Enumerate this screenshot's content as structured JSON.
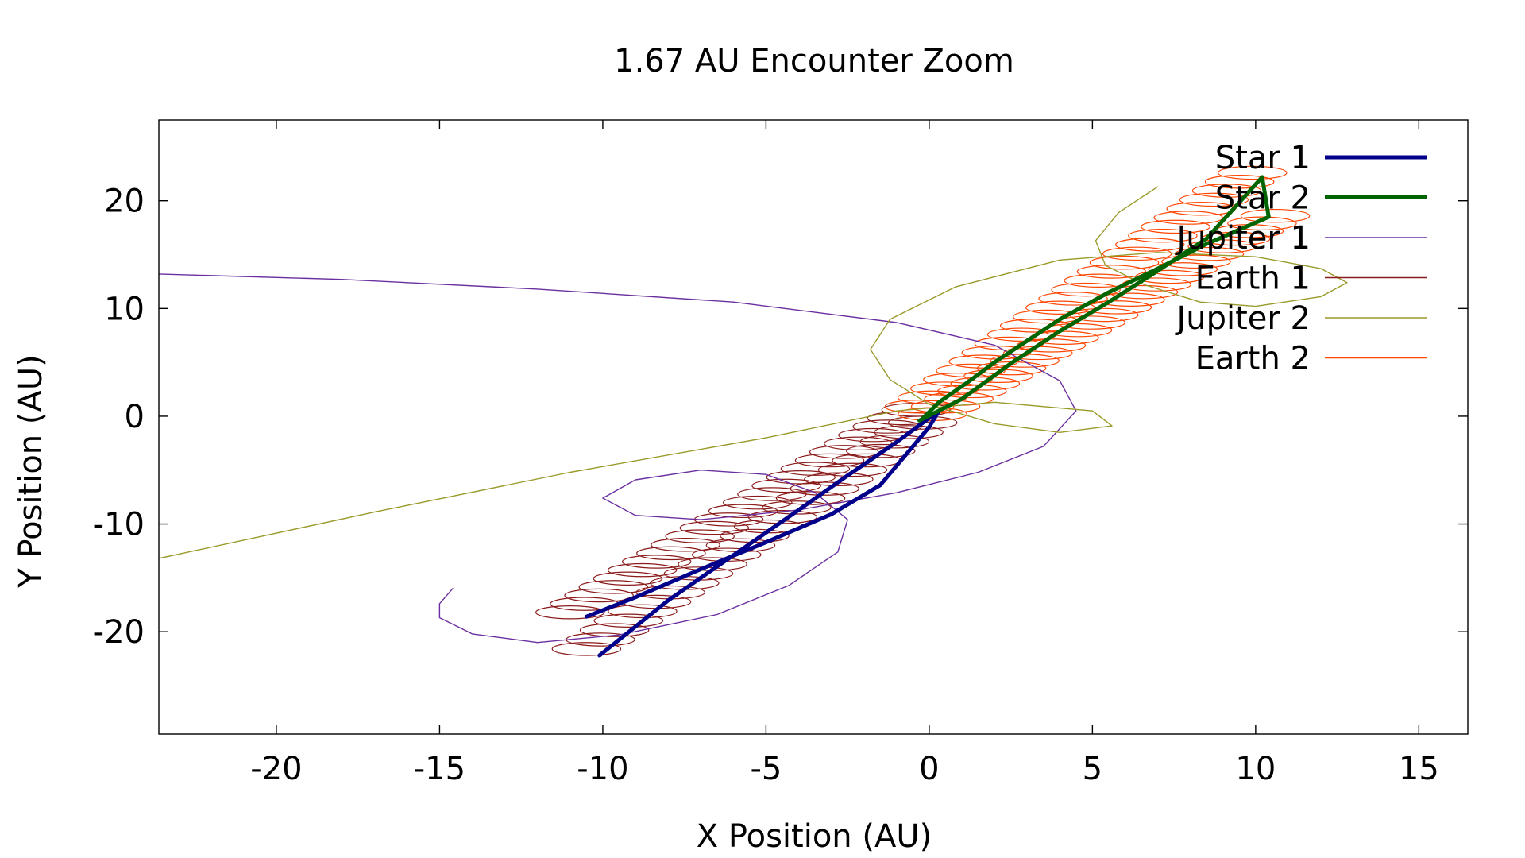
{
  "chart_data": {
    "type": "line",
    "title": "1.67 AU Encounter Zoom",
    "xlabel": "X Position (AU)",
    "ylabel": "Y Position (AU)",
    "xlim": [
      -23.6,
      16.5
    ],
    "ylim": [
      -29.5,
      27.5
    ],
    "xticks": [
      -20,
      -15,
      -10,
      -5,
      0,
      5,
      10,
      15
    ],
    "yticks": [
      -20,
      -10,
      0,
      10,
      20
    ],
    "grid": false,
    "legend_position": "top-right",
    "series": [
      {
        "name": "Star 1",
        "color": "#00008b",
        "width": 5,
        "points": [
          [
            -10.5,
            -18.6
          ],
          [
            -9,
            -16.8
          ],
          [
            -7,
            -14.2
          ],
          [
            -5,
            -11.7
          ],
          [
            -3,
            -9.1
          ],
          [
            -1.5,
            -6.4
          ],
          [
            0,
            -1.0
          ],
          [
            0.3,
            0.5
          ],
          [
            -1,
            -2.4
          ],
          [
            -2.5,
            -5.5
          ],
          [
            -4,
            -8.7
          ],
          [
            -6,
            -12.9
          ],
          [
            -8,
            -17.1
          ],
          [
            -10.1,
            -22.2
          ]
        ]
      },
      {
        "name": "Star 2",
        "color": "#006400",
        "width": 5,
        "points": [
          [
            -0.3,
            -0.4
          ],
          [
            1,
            1.6
          ],
          [
            2.5,
            4.9
          ],
          [
            4,
            7.9
          ],
          [
            5.5,
            10.6
          ],
          [
            7,
            13.5
          ],
          [
            8.5,
            16.5
          ],
          [
            10.2,
            22.2
          ],
          [
            10.4,
            18.5
          ],
          [
            8.5,
            16.0
          ],
          [
            7,
            13.7
          ],
          [
            5.5,
            11.5
          ],
          [
            4,
            9.0
          ],
          [
            3,
            7.0
          ],
          [
            2,
            5.0
          ],
          [
            1.2,
            3.2
          ],
          [
            0.3,
            1.3
          ],
          [
            -0.2,
            -0.2
          ]
        ]
      },
      {
        "name": "Jupiter 1",
        "color": "#6b2fa0",
        "width": 1.4,
        "points": [
          [
            -23.6,
            13.2
          ],
          [
            -18,
            12.7
          ],
          [
            -12,
            11.8
          ],
          [
            -6,
            10.6
          ],
          [
            -1,
            8.7
          ],
          [
            2,
            6.6
          ],
          [
            4,
            3.3
          ],
          [
            4.5,
            0.5
          ],
          [
            3.5,
            -2.8
          ],
          [
            1.5,
            -5.2
          ],
          [
            -1,
            -7.1
          ],
          [
            -4,
            -8.7
          ],
          [
            -7,
            -9.6
          ],
          [
            -9,
            -9.2
          ],
          [
            -10,
            -7.6
          ],
          [
            -9,
            -5.9
          ],
          [
            -7,
            -5.0
          ],
          [
            -5,
            -5.4
          ],
          [
            -3.5,
            -7.1
          ],
          [
            -2.5,
            -9.6
          ],
          [
            -2.8,
            -12.6
          ],
          [
            -4.3,
            -15.7
          ],
          [
            -6.5,
            -18.4
          ],
          [
            -9.5,
            -20.3
          ],
          [
            -12,
            -21.0
          ],
          [
            -14,
            -20.2
          ],
          [
            -15,
            -18.7
          ],
          [
            -15,
            -17.4
          ],
          [
            -14.6,
            -16.0
          ]
        ]
      },
      {
        "name": "Earth 1",
        "color": "#8b1a1a",
        "width": 1.4,
        "points": []
      },
      {
        "name": "Jupiter 2",
        "color": "#9a9a2a",
        "width": 1.4,
        "points": [
          [
            -23.6,
            -13.2
          ],
          [
            -17,
            -8.9
          ],
          [
            -11,
            -5.2
          ],
          [
            -5,
            -2.0
          ],
          [
            -1,
            0.5
          ],
          [
            2,
            1.3
          ],
          [
            5,
            0.5
          ],
          [
            5.6,
            -0.9
          ],
          [
            4,
            -1.5
          ],
          [
            2,
            -0.7
          ],
          [
            0,
            1.1
          ],
          [
            -1.2,
            3.4
          ],
          [
            -1.8,
            6.2
          ],
          [
            -1.2,
            9.0
          ],
          [
            0.8,
            12.0
          ],
          [
            4,
            14.5
          ],
          [
            7,
            15.2
          ],
          [
            10,
            14.8
          ],
          [
            12,
            13.7
          ],
          [
            12.8,
            12.4
          ],
          [
            12,
            11.1
          ],
          [
            10,
            10.2
          ],
          [
            8.3,
            10.6
          ],
          [
            6.6,
            12.2
          ],
          [
            5.4,
            14.0
          ],
          [
            5.1,
            16.3
          ],
          [
            5.8,
            18.9
          ],
          [
            7.0,
            21.3
          ]
        ]
      },
      {
        "name": "Earth 2",
        "color": "#ff4500",
        "width": 1.4,
        "points": []
      }
    ]
  }
}
